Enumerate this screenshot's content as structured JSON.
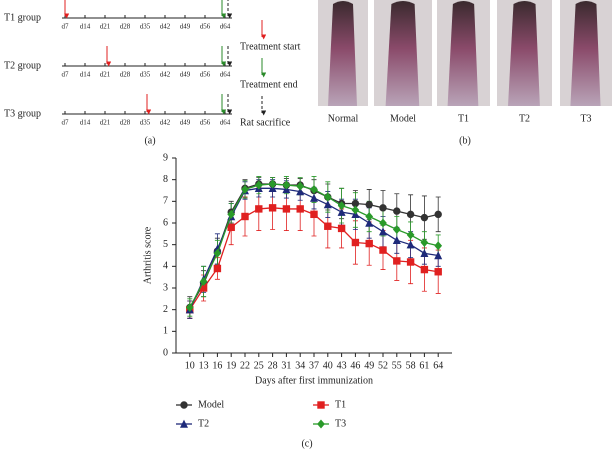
{
  "panel_a": {
    "label": "(a)",
    "groups": [
      "T1 group",
      "T2 group",
      "T3 group"
    ],
    "days": [
      "d7",
      "d14",
      "d21",
      "d28",
      "d35",
      "d42",
      "d49",
      "d56",
      "d64"
    ],
    "legend": [
      "Treatment start",
      "Treatment end",
      "Rat sacrifice"
    ]
  },
  "panel_b": {
    "label": "(b)",
    "photos": [
      "Normal",
      "Model",
      "T1",
      "T2",
      "T3"
    ]
  },
  "chart_data": {
    "type": "line",
    "label": "(c)",
    "x_label": "Days after first immunization",
    "y_label": "Arthritis score",
    "x": [
      10,
      13,
      16,
      19,
      22,
      25,
      28,
      31,
      34,
      37,
      40,
      43,
      46,
      49,
      52,
      55,
      58,
      61,
      64
    ],
    "xlim": [
      7,
      67
    ],
    "xticks": [
      10,
      13,
      16,
      19,
      22,
      25,
      28,
      31,
      34,
      37,
      40,
      43,
      46,
      49,
      52,
      55,
      58,
      61,
      64
    ],
    "ylim": [
      0,
      9
    ],
    "yticks": [
      0,
      1,
      2,
      3,
      4,
      5,
      6,
      7,
      8,
      9
    ],
    "series": [
      {
        "name": "Model",
        "color": "#333333",
        "marker": "circle",
        "values": [
          2.1,
          3.2,
          4.7,
          6.5,
          7.6,
          7.8,
          7.8,
          7.75,
          7.75,
          7.5,
          7.2,
          6.9,
          6.9,
          6.85,
          6.7,
          6.55,
          6.4,
          6.25,
          6.4
        ],
        "errors": [
          0.5,
          0.6,
          0.6,
          0.5,
          0.4,
          0.3,
          0.3,
          0.3,
          0.3,
          0.5,
          0.6,
          0.7,
          0.6,
          0.7,
          0.8,
          0.8,
          0.9,
          1.0,
          0.8
        ]
      },
      {
        "name": "T1",
        "color": "#e02020",
        "marker": "square",
        "values": [
          2.0,
          3.0,
          3.9,
          5.8,
          6.3,
          6.65,
          6.7,
          6.65,
          6.65,
          6.4,
          5.85,
          5.75,
          5.1,
          5.05,
          4.75,
          4.25,
          4.2,
          3.85,
          3.75
        ],
        "errors": [
          0.4,
          0.6,
          0.5,
          0.8,
          0.9,
          1.0,
          1.0,
          1.0,
          1.0,
          1.0,
          1.0,
          0.9,
          1.0,
          1.0,
          0.9,
          0.9,
          1.0,
          1.0,
          1.0
        ]
      },
      {
        "name": "T2",
        "color": "#1f2a7a",
        "marker": "triangle",
        "values": [
          2.0,
          3.4,
          4.8,
          6.3,
          7.5,
          7.6,
          7.6,
          7.55,
          7.45,
          7.15,
          6.85,
          6.5,
          6.4,
          6.0,
          5.6,
          5.2,
          5.0,
          4.6,
          4.5
        ],
        "errors": [
          0.4,
          0.6,
          0.7,
          0.6,
          0.4,
          0.4,
          0.4,
          0.4,
          0.4,
          0.5,
          0.6,
          0.6,
          0.7,
          0.7,
          0.7,
          0.6,
          0.6,
          0.5,
          0.5
        ]
      },
      {
        "name": "T3",
        "color": "#2a9a2a",
        "marker": "diamond",
        "values": [
          2.1,
          3.3,
          4.6,
          6.4,
          7.55,
          7.75,
          7.8,
          7.75,
          7.7,
          7.55,
          7.2,
          6.8,
          6.6,
          6.3,
          6.0,
          5.7,
          5.45,
          5.1,
          4.95
        ],
        "errors": [
          0.4,
          0.7,
          0.6,
          0.5,
          0.4,
          0.4,
          0.3,
          0.4,
          0.4,
          0.6,
          0.7,
          0.8,
          0.8,
          0.7,
          0.6,
          0.6,
          0.6,
          0.5,
          0.5
        ]
      }
    ]
  }
}
